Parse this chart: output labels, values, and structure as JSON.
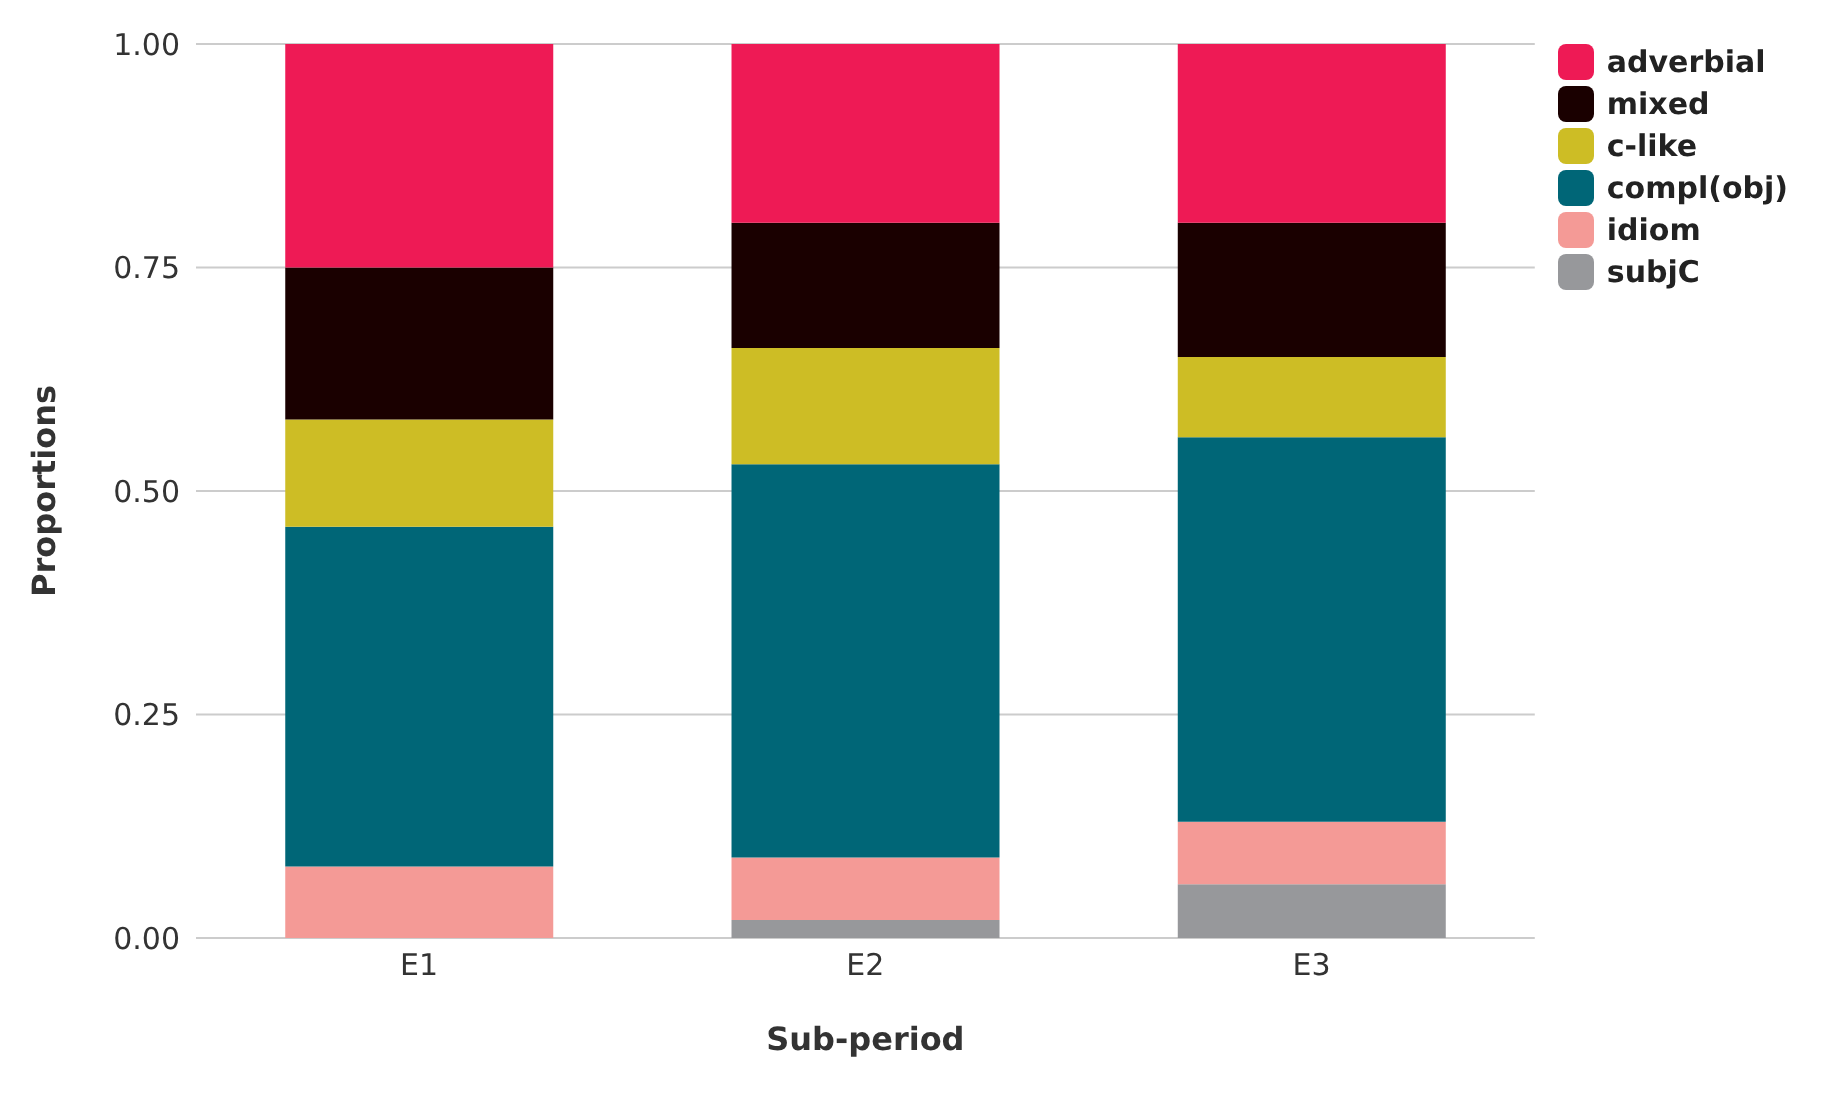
{
  "chart_data": {
    "type": "bar",
    "stacked": true,
    "xlabel": "Sub-period",
    "ylabel": "Proportions",
    "categories": [
      "E1",
      "E2",
      "E3"
    ],
    "series": [
      {
        "name": "subjC",
        "color": "#97989b",
        "values": [
          0,
          0.02,
          0.06
        ]
      },
      {
        "name": "idiom",
        "color": "#f49a96",
        "values": [
          0.08,
          0.07,
          0.07
        ]
      },
      {
        "name": "compl(obj)",
        "color": "#006677",
        "values": [
          0.38,
          0.44,
          0.43
        ]
      },
      {
        "name": "c-like",
        "color": "#cdbd25",
        "values": [
          0.12,
          0.13,
          0.09
        ]
      },
      {
        "name": "mixed",
        "color": "#1a0000",
        "values": [
          0.17,
          0.14,
          0.15
        ]
      },
      {
        "name": "adverbial",
        "color": "#ee1a55",
        "values": [
          0.25,
          0.2,
          0.2
        ]
      }
    ],
    "ylim": [
      0,
      1
    ],
    "yticks": [
      {
        "value": 0,
        "label": "0.00"
      },
      {
        "value": 0.25,
        "label": "0.25"
      },
      {
        "value": 0.5,
        "label": "0.50"
      },
      {
        "value": 0.75,
        "label": "0.75"
      },
      {
        "value": 1,
        "label": "1.00"
      }
    ],
    "grid": "y",
    "legend": "top right"
  }
}
